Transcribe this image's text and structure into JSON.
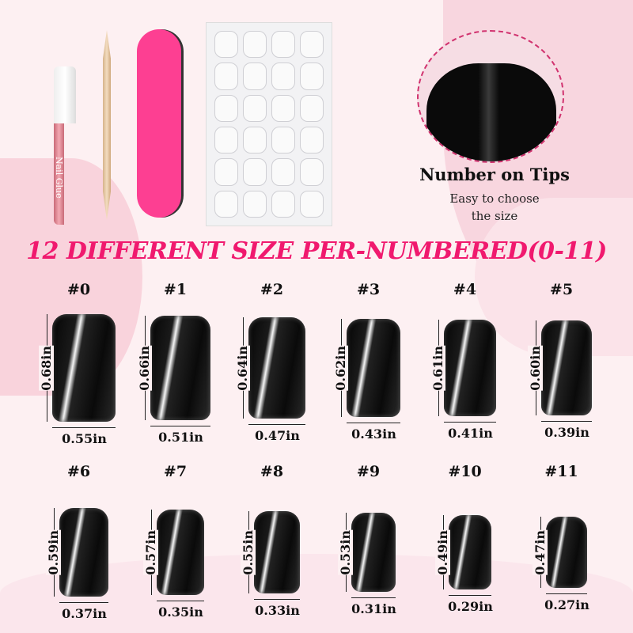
{
  "products": {
    "glue_label": "Nail Glue"
  },
  "tip_callout": {
    "title": "Number on Tips",
    "subtitle_line1": "Easy to choose",
    "subtitle_line2": "the size"
  },
  "headline": "12 DIFFERENT SIZE PER-NUMBERED(0-11)",
  "colors": {
    "headline": "#f0196e",
    "file": "#fd3f92",
    "background": "#fdf0f2"
  },
  "sizes": [
    {
      "number": "#0",
      "height": "0.68in",
      "width": "0.55in",
      "h": 0.68,
      "w": 0.55
    },
    {
      "number": "#1",
      "height": "0.66in",
      "width": "0.51in",
      "h": 0.66,
      "w": 0.51
    },
    {
      "number": "#2",
      "height": "0.64in",
      "width": "0.47in",
      "h": 0.64,
      "w": 0.47
    },
    {
      "number": "#3",
      "height": "0.62in",
      "width": "0.43in",
      "h": 0.62,
      "w": 0.43
    },
    {
      "number": "#4",
      "height": "0.61in",
      "width": "0.41in",
      "h": 0.61,
      "w": 0.41
    },
    {
      "number": "#5",
      "height": "0.60in",
      "width": "0.39in",
      "h": 0.6,
      "w": 0.39
    },
    {
      "number": "#6",
      "height": "0.59in",
      "width": "0.37in",
      "h": 0.59,
      "w": 0.37
    },
    {
      "number": "#7",
      "height": "0.57in",
      "width": "0.35in",
      "h": 0.57,
      "w": 0.35
    },
    {
      "number": "#8",
      "height": "0.55in",
      "width": "0.33in",
      "h": 0.55,
      "w": 0.33
    },
    {
      "number": "#9",
      "height": "0.53in",
      "width": "0.31in",
      "h": 0.53,
      "w": 0.31
    },
    {
      "number": "#10",
      "height": "0.49in",
      "width": "0.29in",
      "h": 0.49,
      "w": 0.29
    },
    {
      "number": "#11",
      "height": "0.47in",
      "width": "0.27in",
      "h": 0.47,
      "w": 0.27
    }
  ]
}
